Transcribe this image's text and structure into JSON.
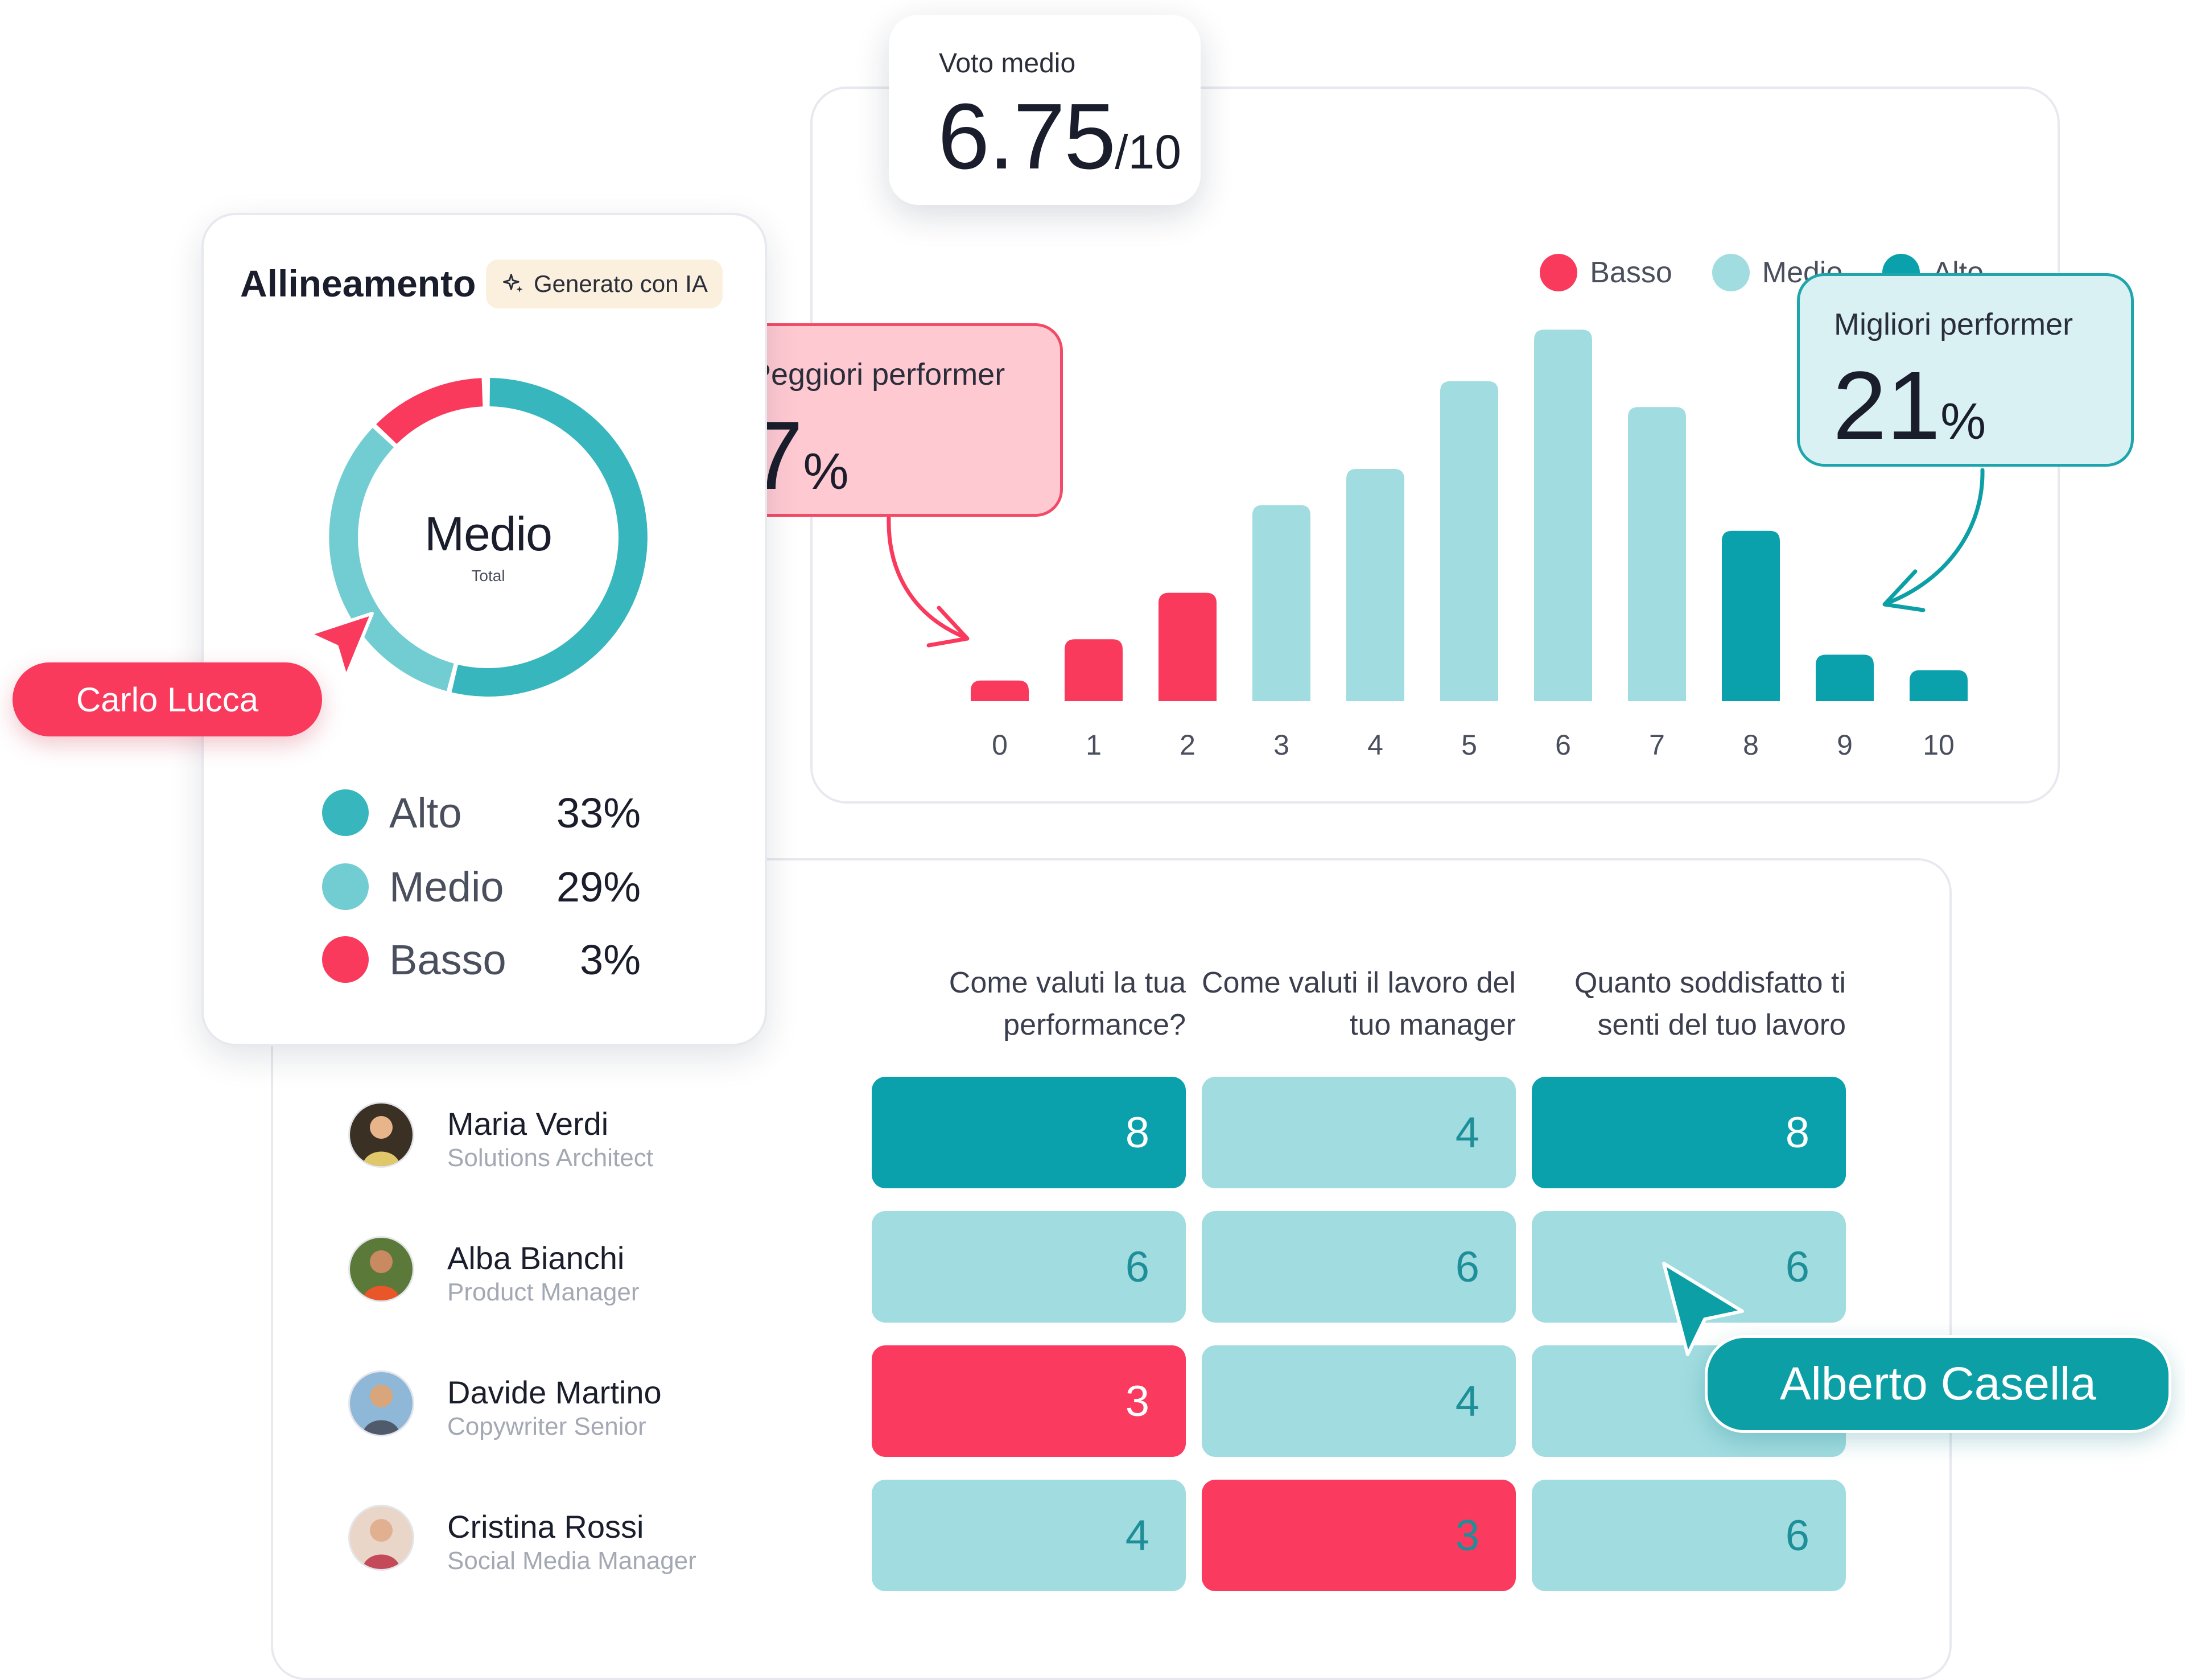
{
  "average": {
    "label": "Voto medio",
    "value": "6.75",
    "suffix": "/10"
  },
  "legend": [
    {
      "label": "Basso",
      "color": "#f93a5c"
    },
    {
      "label": "Medio",
      "color": "#a1dce0"
    },
    {
      "label": "Alto",
      "color": "#0aa0ac"
    }
  ],
  "worst_performers": {
    "label": "Peggiori performer",
    "value": "7",
    "unit": "%"
  },
  "best_performers": {
    "label": "Migliori performer",
    "value": "21",
    "unit": "%"
  },
  "chart_data": {
    "type": "bar",
    "categories": [
      "0",
      "1",
      "2",
      "3",
      "4",
      "5",
      "6",
      "7",
      "8",
      "9",
      "10"
    ],
    "values": [
      4,
      12,
      21,
      38,
      45,
      62,
      72,
      57,
      33,
      9,
      6
    ],
    "levels": [
      "Basso",
      "Basso",
      "Basso",
      "Medio",
      "Medio",
      "Medio",
      "Medio",
      "Medio",
      "Alto",
      "Alto",
      "Alto"
    ],
    "ylim": [
      0,
      75
    ],
    "grid": false,
    "legend_position": "top-right",
    "title": "",
    "xlabel": "",
    "ylabel": ""
  },
  "alignment": {
    "title": "Allineamento",
    "badge": "Generato con IA",
    "center_label": "Medio",
    "center_sub": "Total",
    "segments": [
      {
        "label": "Alto",
        "percent": 33,
        "display": "33%",
        "color": "#37b7bd"
      },
      {
        "label": "Medio",
        "percent": 29,
        "display": "29%",
        "color": "#72cdd2"
      },
      {
        "label": "Basso",
        "percent": 3,
        "display": "3%",
        "color": "#f93a5c"
      }
    ]
  },
  "cursors": {
    "carlo": "Carlo Lucca",
    "alberto": "Alberto Casella"
  },
  "survey": {
    "questions": [
      "Come valuti la tua performance?",
      "Come valuti il lavoro del tuo manager",
      "Quanto soddisfatto ti senti del tuo lavoro"
    ],
    "people": [
      {
        "name": "Maria Verdi",
        "role": "Solutions Architect",
        "scores": [
          "8",
          "4",
          "8"
        ],
        "levels": [
          "alto",
          "medio",
          "alto"
        ]
      },
      {
        "name": "Alba Bianchi",
        "role": "Product Manager",
        "scores": [
          "6",
          "6",
          "6"
        ],
        "levels": [
          "medio",
          "medio",
          "medio"
        ]
      },
      {
        "name": "Davide Martino",
        "role": "Copywriter Senior",
        "scores": [
          "3",
          "4",
          ""
        ],
        "levels": [
          "basso",
          "medio",
          "medio"
        ]
      },
      {
        "name": "Cristina Rossi",
        "role": "Social Media Manager",
        "scores": [
          "4",
          "3",
          "6"
        ],
        "levels": [
          "medio",
          "basso-dark",
          "medio"
        ]
      }
    ]
  }
}
